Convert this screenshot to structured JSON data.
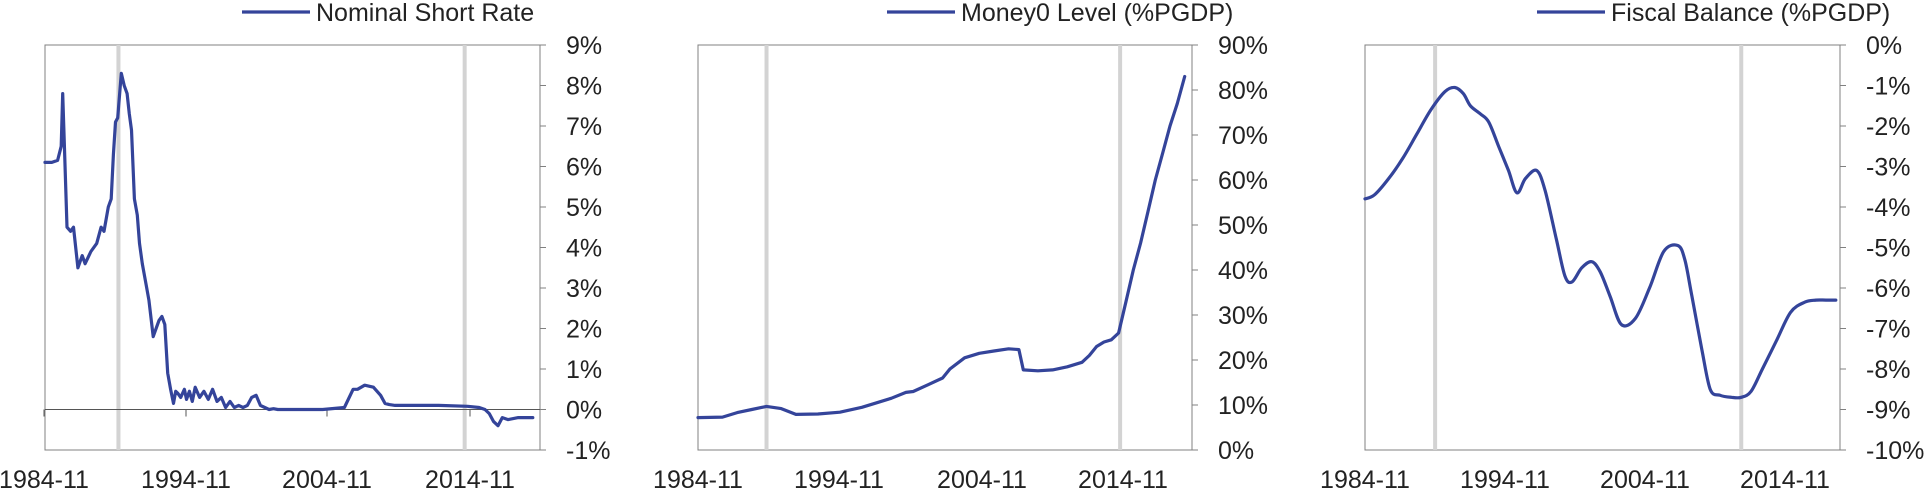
{
  "colors": {
    "line": "#34449a",
    "frame": "#808080",
    "marker": "#d3d3d3",
    "zero": "#555555"
  },
  "chart_data": [
    {
      "type": "line",
      "title": "",
      "xlabel": "",
      "ylabel": "",
      "legend": "top-center",
      "legend_label": "Nominal Short Rate",
      "x_ticks": [
        "1984-11",
        "1994-11",
        "2004-11",
        "2014-11"
      ],
      "xlim": [
        1984.83,
        2019.0
      ],
      "y_ticks": [
        "9%",
        "8%",
        "7%",
        "6%",
        "5%",
        "4%",
        "3%",
        "2%",
        "1%",
        "0%",
        "-1%"
      ],
      "ylim": [
        -1,
        9
      ],
      "zero_line": true,
      "vlines": [
        1989.9,
        2013.8
      ],
      "series": [
        {
          "x": [
            1984.83,
            1985.3,
            1985.7,
            1985.95,
            1986.05,
            1986.2,
            1986.35,
            1986.6,
            1986.8,
            1987.1,
            1987.4,
            1987.6,
            1988.0,
            1988.4,
            1988.7,
            1988.9,
            1989.2,
            1989.4,
            1989.55,
            1989.7,
            1989.85,
            1990.1,
            1990.3,
            1990.5,
            1990.65,
            1990.8,
            1991.0,
            1991.2,
            1991.35,
            1991.55,
            1991.8,
            1992.0,
            1992.3,
            1992.7,
            1992.9,
            1993.1,
            1993.3,
            1993.5,
            1993.7,
            1993.85,
            1994.0,
            1994.2,
            1994.45,
            1994.6,
            1994.8,
            1995.0,
            1995.2,
            1995.5,
            1995.8,
            1996.1,
            1996.4,
            1996.7,
            1997.0,
            1997.3,
            1997.6,
            1997.9,
            1998.2,
            1998.5,
            1998.8,
            1999.1,
            1999.4,
            1999.7,
            2000.0,
            2000.3,
            2000.6,
            2000.9,
            2001.3,
            2001.7,
            2002.5,
            2004.0,
            2005.5,
            2006.1,
            2006.4,
            2006.9,
            2007.5,
            2008.0,
            2008.3,
            2008.6,
            2009.0,
            2010.0,
            2012.0,
            2014.0,
            2014.8,
            2015.2,
            2015.5,
            2015.8,
            2016.1,
            2016.4,
            2016.8,
            2017.5,
            2018.5
          ],
          "y": [
            6.1,
            6.1,
            6.15,
            6.5,
            7.8,
            6.2,
            4.5,
            4.4,
            4.5,
            3.5,
            3.8,
            3.6,
            3.9,
            4.1,
            4.5,
            4.4,
            5.0,
            5.2,
            6.3,
            7.1,
            7.2,
            8.3,
            8.0,
            7.8,
            7.3,
            6.9,
            5.2,
            4.8,
            4.1,
            3.6,
            3.1,
            2.7,
            1.8,
            2.2,
            2.3,
            2.1,
            0.9,
            0.5,
            0.15,
            0.45,
            0.4,
            0.3,
            0.5,
            0.25,
            0.45,
            0.2,
            0.55,
            0.3,
            0.45,
            0.25,
            0.5,
            0.2,
            0.3,
            0.05,
            0.2,
            0.05,
            0.1,
            0.05,
            0.1,
            0.3,
            0.35,
            0.1,
            0.05,
            0.0,
            0.02,
            0.0,
            0.0,
            0.0,
            0.0,
            0.0,
            0.05,
            0.5,
            0.5,
            0.6,
            0.55,
            0.35,
            0.15,
            0.12,
            0.1,
            0.1,
            0.1,
            0.08,
            0.05,
            0.0,
            -0.1,
            -0.3,
            -0.4,
            -0.2,
            -0.25,
            -0.2,
            -0.2
          ]
        }
      ]
    },
    {
      "type": "line",
      "title": "",
      "xlabel": "",
      "ylabel": "",
      "legend": "top-center",
      "legend_label": "Money0 Level (%PGDP)",
      "x_ticks": [
        "1984-11",
        "1994-11",
        "2004-11",
        "2014-11"
      ],
      "xlim": [
        1984.83,
        2018.5
      ],
      "y_ticks": [
        "90%",
        "80%",
        "70%",
        "60%",
        "50%",
        "40%",
        "30%",
        "20%",
        "10%",
        "0%"
      ],
      "ylim": [
        0,
        90
      ],
      "zero_line": false,
      "vlines": [
        1989.5,
        2013.6
      ],
      "series": [
        {
          "x": [
            1984.83,
            1986.5,
            1987.5,
            1988.5,
            1989.5,
            1990.5,
            1991.5,
            1993.0,
            1994.5,
            1996.0,
            1997.0,
            1998.0,
            1999.0,
            1999.5,
            2000.5,
            2001.5,
            2002.0,
            2003.0,
            2004.0,
            2005.0,
            2006.0,
            2006.7,
            2007.0,
            2008.0,
            2009.0,
            2010.0,
            2011.0,
            2011.5,
            2012.0,
            2012.5,
            2013.0,
            2013.5,
            2014.0,
            2014.5,
            2015.0,
            2015.5,
            2016.0,
            2016.5,
            2017.0,
            2017.5,
            2018.0
          ],
          "y": [
            7.2,
            7.3,
            8.3,
            9.0,
            9.7,
            9.2,
            7.9,
            8.0,
            8.4,
            9.5,
            10.5,
            11.5,
            12.8,
            13.0,
            14.5,
            16.0,
            18.0,
            20.5,
            21.5,
            22.0,
            22.5,
            22.3,
            17.8,
            17.6,
            17.8,
            18.5,
            19.5,
            21.0,
            23.0,
            24.0,
            24.5,
            26.0,
            33.0,
            40.0,
            46.0,
            53.0,
            60.0,
            66.0,
            72.0,
            77.0,
            83.0
          ]
        }
      ]
    },
    {
      "type": "line",
      "title": "",
      "xlabel": "",
      "ylabel": "",
      "legend": "top-center",
      "legend_label": "Fiscal Balance (%PGDP)",
      "x_ticks": [
        "1984-11",
        "1994-11",
        "2004-11",
        "2014-11"
      ],
      "xlim": [
        1984.83,
        2018.5
      ],
      "y_ticks": [
        "0%",
        "-1%",
        "-2%",
        "-3%",
        "-4%",
        "-5%",
        "-6%",
        "-7%",
        "-8%",
        "-9%",
        "-10%"
      ],
      "ylim": [
        -10,
        0
      ],
      "zero_line": false,
      "vlines": [
        1989.8,
        2011.5
      ],
      "series": [
        {
          "x": [
            1984.83,
            1985.5,
            1986.5,
            1987.5,
            1988.5,
            1989.5,
            1990.5,
            1991.2,
            1991.8,
            1992.3,
            1993.0,
            1993.6,
            1994.3,
            1995.0,
            1995.6,
            1996.2,
            1997.0,
            1997.6,
            1998.4,
            1999.0,
            1999.5,
            2000.2,
            2000.9,
            2001.5,
            2002.2,
            2003.0,
            2004.0,
            2005.0,
            2006.0,
            2007.0,
            2007.5,
            2008.0,
            2008.7,
            2009.3,
            2010.0,
            2010.8,
            2011.5,
            2012.2,
            2013.0,
            2014.0,
            2015.0,
            2016.0,
            2016.8,
            2017.5,
            2018.2
          ],
          "y": [
            -3.8,
            -3.7,
            -3.3,
            -2.8,
            -2.2,
            -1.6,
            -1.15,
            -1.05,
            -1.2,
            -1.5,
            -1.7,
            -1.9,
            -2.5,
            -3.1,
            -3.65,
            -3.3,
            -3.1,
            -3.6,
            -4.8,
            -5.7,
            -5.85,
            -5.5,
            -5.35,
            -5.6,
            -6.2,
            -6.9,
            -6.75,
            -6.0,
            -5.1,
            -4.95,
            -5.3,
            -6.2,
            -7.5,
            -8.5,
            -8.65,
            -8.7,
            -8.7,
            -8.55,
            -8.0,
            -7.3,
            -6.6,
            -6.35,
            -6.3,
            -6.3,
            -6.3
          ]
        }
      ]
    }
  ]
}
